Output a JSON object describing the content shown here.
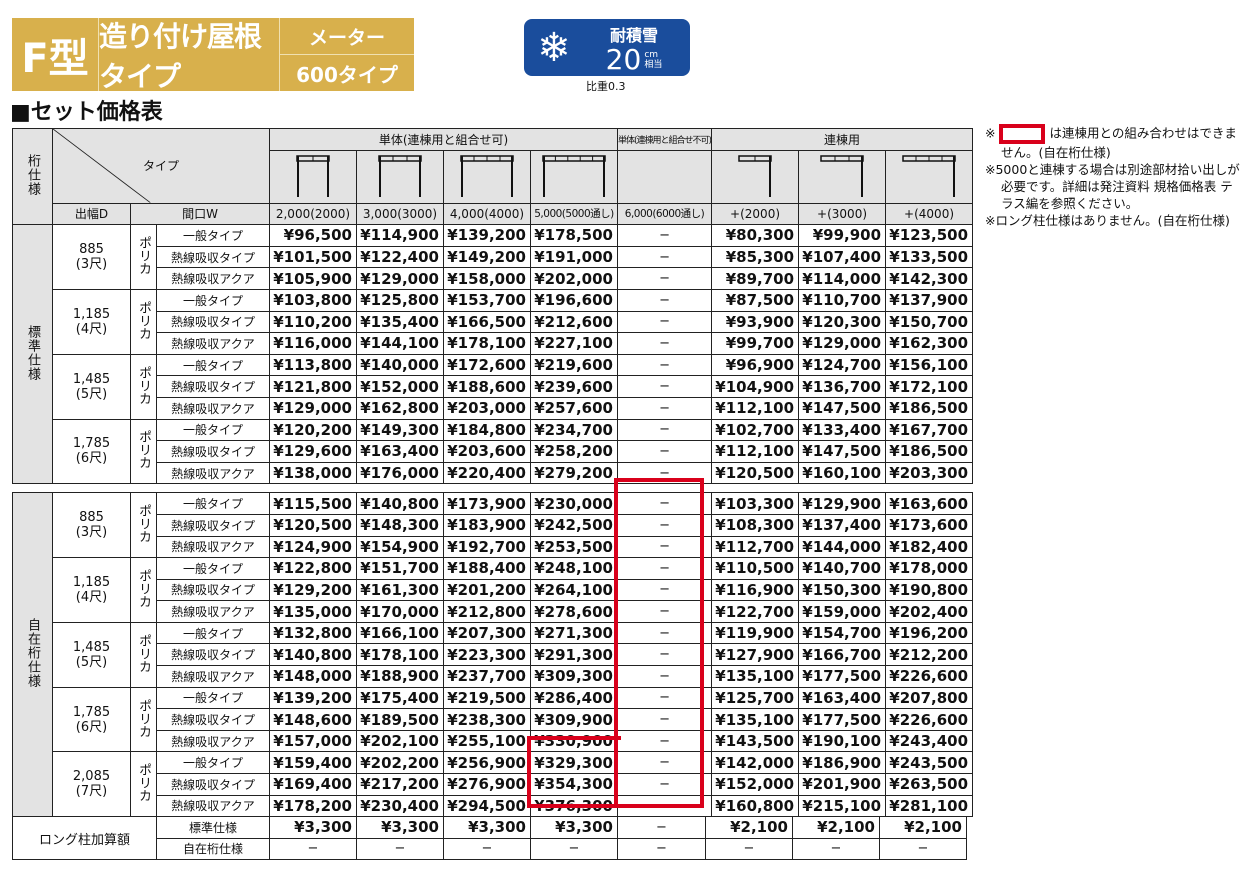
{
  "header": {
    "model": "F型",
    "roof_type": "造り付け屋根タイプ",
    "maker_label": "メーター",
    "size_type": "600タイプ",
    "snow_badge": {
      "icon": "snowflake-icon",
      "title": "耐積雪",
      "value": "20",
      "unit_top": "cm",
      "unit_bottom": "相当",
      "color": "#1a4d9c"
    },
    "gravity": "比重0.3",
    "accent_color": "#d8b04c"
  },
  "section_title": "■セット価格表",
  "table": {
    "corner_spec": "桁仕様",
    "corner_type": "タイプ",
    "corner_depth": "出幅D",
    "corner_width": "間口W",
    "group_single_combinable": "単体(連棟用と組合せ可)",
    "group_single_not_combinable": "単体(連棟用と組合せ不可)",
    "group_linked": "連棟用",
    "columns": [
      "2,000(2000)",
      "3,000(3000)",
      "4,000(4000)",
      "5,000(5000通し)",
      "6,000(6000通し)",
      "+(2000)",
      "+(3000)",
      "+(4000)"
    ],
    "material": "ポリカ",
    "types": [
      "一般タイプ",
      "熱線吸収タイプ",
      "熱線吸収アクア"
    ],
    "sections": [
      {
        "spec": "標準仕様",
        "groups": [
          {
            "depth": "885",
            "shaku": "(3尺)",
            "rows": [
              [
                "¥96,500",
                "¥114,900",
                "¥139,200",
                "¥178,500",
                "−",
                "¥80,300",
                "¥99,900",
                "¥123,500"
              ],
              [
                "¥101,500",
                "¥122,400",
                "¥149,200",
                "¥191,000",
                "−",
                "¥85,300",
                "¥107,400",
                "¥133,500"
              ],
              [
                "¥105,900",
                "¥129,000",
                "¥158,000",
                "¥202,000",
                "−",
                "¥89,700",
                "¥114,000",
                "¥142,300"
              ]
            ]
          },
          {
            "depth": "1,185",
            "shaku": "(4尺)",
            "rows": [
              [
                "¥103,800",
                "¥125,800",
                "¥153,700",
                "¥196,600",
                "−",
                "¥87,500",
                "¥110,700",
                "¥137,900"
              ],
              [
                "¥110,200",
                "¥135,400",
                "¥166,500",
                "¥212,600",
                "−",
                "¥93,900",
                "¥120,300",
                "¥150,700"
              ],
              [
                "¥116,000",
                "¥144,100",
                "¥178,100",
                "¥227,100",
                "−",
                "¥99,700",
                "¥129,000",
                "¥162,300"
              ]
            ]
          },
          {
            "depth": "1,485",
            "shaku": "(5尺)",
            "rows": [
              [
                "¥113,800",
                "¥140,000",
                "¥172,600",
                "¥219,600",
                "−",
                "¥96,900",
                "¥124,700",
                "¥156,100"
              ],
              [
                "¥121,800",
                "¥152,000",
                "¥188,600",
                "¥239,600",
                "−",
                "¥104,900",
                "¥136,700",
                "¥172,100"
              ],
              [
                "¥129,000",
                "¥162,800",
                "¥203,000",
                "¥257,600",
                "−",
                "¥112,100",
                "¥147,500",
                "¥186,500"
              ]
            ]
          },
          {
            "depth": "1,785",
            "shaku": "(6尺)",
            "rows": [
              [
                "¥120,200",
                "¥149,300",
                "¥184,800",
                "¥234,700",
                "−",
                "¥102,700",
                "¥133,400",
                "¥167,700"
              ],
              [
                "¥129,600",
                "¥163,400",
                "¥203,600",
                "¥258,200",
                "−",
                "¥112,100",
                "¥147,500",
                "¥186,500"
              ],
              [
                "¥138,000",
                "¥176,000",
                "¥220,400",
                "¥279,200",
                "−",
                "¥120,500",
                "¥160,100",
                "¥203,300"
              ]
            ]
          }
        ]
      },
      {
        "spec": "自在桁仕様",
        "groups": [
          {
            "depth": "885",
            "shaku": "(3尺)",
            "rows": [
              [
                "¥115,500",
                "¥140,800",
                "¥173,900",
                "¥230,000",
                "−",
                "¥103,300",
                "¥129,900",
                "¥163,600"
              ],
              [
                "¥120,500",
                "¥148,300",
                "¥183,900",
                "¥242,500",
                "−",
                "¥108,300",
                "¥137,400",
                "¥173,600"
              ],
              [
                "¥124,900",
                "¥154,900",
                "¥192,700",
                "¥253,500",
                "−",
                "¥112,700",
                "¥144,000",
                "¥182,400"
              ]
            ]
          },
          {
            "depth": "1,185",
            "shaku": "(4尺)",
            "rows": [
              [
                "¥122,800",
                "¥151,700",
                "¥188,400",
                "¥248,100",
                "−",
                "¥110,500",
                "¥140,700",
                "¥178,000"
              ],
              [
                "¥129,200",
                "¥161,300",
                "¥201,200",
                "¥264,100",
                "−",
                "¥116,900",
                "¥150,300",
                "¥190,800"
              ],
              [
                "¥135,000",
                "¥170,000",
                "¥212,800",
                "¥278,600",
                "−",
                "¥122,700",
                "¥159,000",
                "¥202,400"
              ]
            ]
          },
          {
            "depth": "1,485",
            "shaku": "(5尺)",
            "rows": [
              [
                "¥132,800",
                "¥166,100",
                "¥207,300",
                "¥271,300",
                "−",
                "¥119,900",
                "¥154,700",
                "¥196,200"
              ],
              [
                "¥140,800",
                "¥178,100",
                "¥223,300",
                "¥291,300",
                "−",
                "¥127,900",
                "¥166,700",
                "¥212,200"
              ],
              [
                "¥148,000",
                "¥188,900",
                "¥237,700",
                "¥309,300",
                "−",
                "¥135,100",
                "¥177,500",
                "¥226,600"
              ]
            ]
          },
          {
            "depth": "1,785",
            "shaku": "(6尺)",
            "rows": [
              [
                "¥139,200",
                "¥175,400",
                "¥219,500",
                "¥286,400",
                "−",
                "¥125,700",
                "¥163,400",
                "¥207,800"
              ],
              [
                "¥148,600",
                "¥189,500",
                "¥238,300",
                "¥309,900",
                "−",
                "¥135,100",
                "¥177,500",
                "¥226,600"
              ],
              [
                "¥157,000",
                "¥202,100",
                "¥255,100",
                "¥330,900",
                "−",
                "¥143,500",
                "¥190,100",
                "¥243,400"
              ]
            ]
          },
          {
            "depth": "2,085",
            "shaku": "(7尺)",
            "rows": [
              [
                "¥159,400",
                "¥202,200",
                "¥256,900",
                "¥329,300",
                "−",
                "¥142,000",
                "¥186,900",
                "¥243,500"
              ],
              [
                "¥169,400",
                "¥217,200",
                "¥276,900",
                "¥354,300",
                "−",
                "¥152,000",
                "¥201,900",
                "¥263,500"
              ],
              [
                "¥178,200",
                "¥230,400",
                "¥294,500",
                "¥376,300",
                "−",
                "¥160,800",
                "¥215,100",
                "¥281,100"
              ]
            ]
          }
        ]
      }
    ]
  },
  "long_post": {
    "label": "ロング柱加算額",
    "rows": [
      {
        "spec": "標準仕様",
        "values": [
          "¥3,300",
          "¥3,300",
          "¥3,300",
          "¥3,300",
          "−",
          "¥2,100",
          "¥2,100",
          "¥2,100"
        ]
      },
      {
        "spec": "自在桁仕様",
        "values": [
          "−",
          "−",
          "−",
          "−",
          "−",
          "−",
          "−",
          "−"
        ]
      }
    ]
  },
  "notes": {
    "note1_prefix": "※",
    "note1": "は連棟用との組み合わせはできません。(自在桁仕様)",
    "note2": "※5000と連棟する場合は別途部材拾い出しが必要です。詳細は発注資料 規格価格表 テラス編を参照ください。",
    "note3": "※ロング柱仕様はありません。(自在桁仕様)",
    "highlight_color": "#d9001b"
  }
}
